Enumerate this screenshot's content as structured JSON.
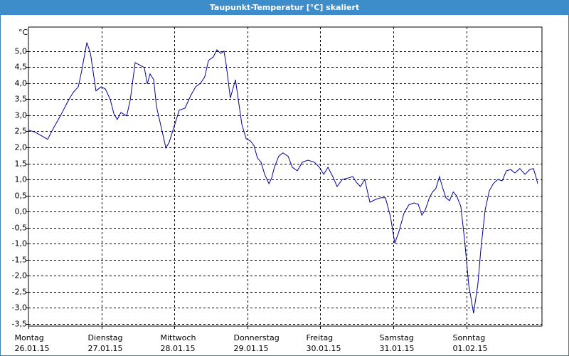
{
  "chart_data": {
    "type": "line",
    "title": "Taupunkt-Temperatur [°C] skaliert",
    "y_unit": "°C",
    "xlim": [
      0,
      168.9
    ],
    "xticks": [
      {
        "value": 0,
        "label": "Montag",
        "date": "26.01.15"
      },
      {
        "value": 24,
        "label": "Dienstag",
        "date": "27.01.15"
      },
      {
        "value": 48,
        "label": "Mittwoch",
        "date": "28.01.15"
      },
      {
        "value": 72,
        "label": "Donnerstag",
        "date": "29.01.15"
      },
      {
        "value": 96,
        "label": "Freitag",
        "date": "30.01.15"
      },
      {
        "value": 120,
        "label": "Samstag",
        "date": "31.01.15"
      },
      {
        "value": 144,
        "label": "Sonntag",
        "date": "01.02.15"
      }
    ],
    "ylim": [
      -3.57,
      5.75
    ],
    "yticks": [
      {
        "value": 5,
        "label": "5,0"
      },
      {
        "value": 4.5,
        "label": "4,5"
      },
      {
        "value": 4,
        "label": "4,0"
      },
      {
        "value": 3.5,
        "label": "3,5"
      },
      {
        "value": 3,
        "label": "3,0"
      },
      {
        "value": 2.5,
        "label": "2,5"
      },
      {
        "value": 2,
        "label": "2,0"
      },
      {
        "value": 1.5,
        "label": "1,5"
      },
      {
        "value": 1,
        "label": "1,0"
      },
      {
        "value": 0.5,
        "label": "0,5"
      },
      {
        "value": 0,
        "label": "0,0"
      },
      {
        "value": -0.5,
        "label": "-0,5"
      },
      {
        "value": -1,
        "label": "-1,0"
      },
      {
        "value": -1.5,
        "label": "-1,5"
      },
      {
        "value": -2,
        "label": "-2,0"
      },
      {
        "value": -2.5,
        "label": "-2,5"
      },
      {
        "value": -3,
        "label": "-3,0"
      },
      {
        "value": -3.5,
        "label": "-3,5"
      }
    ],
    "grid": true,
    "color": "#0000a0",
    "x": [
      0,
      2.3,
      4.7,
      6.3,
      8.2,
      10.5,
      12.9,
      14.7,
      16.4,
      17.5,
      19.2,
      20.4,
      22.2,
      23.9,
      25.3,
      26.9,
      28.1,
      29.2,
      30.4,
      32.3,
      33.5,
      35.1,
      36.7,
      38.1,
      39.1,
      40.0,
      41.2,
      42.1,
      44.0,
      45.2,
      46.3,
      47.9,
      49.6,
      51.5,
      53.3,
      55.0,
      56.6,
      58.0,
      59.2,
      60.8,
      62.0,
      63.2,
      64.3,
      65.0,
      66.4,
      68.1,
      69.0,
      70.2,
      71.6,
      73.0,
      74.2,
      75.3,
      76.5,
      77.7,
      79.1,
      80.0,
      80.9,
      82.3,
      83.7,
      85.4,
      86.8,
      88.4,
      90.1,
      91.9,
      94.0,
      95.7,
      97.1,
      98.5,
      100.1,
      101.5,
      103.2,
      105.3,
      106.7,
      107.8,
      109.2,
      110.6,
      112.3,
      114.2,
      116.0,
      117.4,
      119.1,
      120.5,
      121.9,
      123.5,
      125.1,
      126.8,
      128.2,
      129.4,
      130.5,
      131.9,
      132.9,
      134.0,
      135.2,
      136.1,
      137.3,
      138.5,
      139.7,
      140.8,
      142.2,
      143.4,
      144.8,
      146.4,
      147.8,
      148.8,
      150.2,
      151.6,
      152.9,
      154.4,
      155.8,
      157.2,
      158.6,
      160.0,
      161.6,
      163.3,
      164.9,
      166.1,
      167.0,
      167.5
    ],
    "values": [
      2.54,
      2.47,
      2.34,
      2.25,
      2.6,
      2.98,
      3.42,
      3.71,
      3.89,
      4.38,
      5.27,
      4.93,
      3.76,
      3.89,
      3.82,
      3.49,
      3.05,
      2.87,
      3.09,
      2.98,
      3.49,
      4.64,
      4.56,
      4.49,
      3.98,
      4.29,
      4.11,
      3.27,
      2.49,
      1.98,
      2.16,
      2.65,
      3.16,
      3.22,
      3.6,
      3.89,
      4.0,
      4.2,
      4.71,
      4.82,
      5.04,
      4.93,
      5.0,
      4.6,
      3.54,
      4.11,
      3.49,
      2.71,
      2.27,
      2.2,
      2.05,
      1.67,
      1.54,
      1.16,
      0.87,
      1.05,
      1.38,
      1.72,
      1.83,
      1.72,
      1.38,
      1.27,
      1.54,
      1.6,
      1.54,
      1.38,
      1.16,
      1.38,
      1.09,
      0.78,
      1.0,
      1.05,
      1.09,
      0.92,
      0.78,
      1.0,
      0.29,
      0.38,
      0.43,
      0.43,
      -0.17,
      -0.99,
      -0.61,
      -0.06,
      0.21,
      0.27,
      0.23,
      -0.11,
      0.05,
      0.43,
      0.61,
      0.72,
      1.09,
      0.78,
      0.43,
      0.34,
      0.61,
      0.49,
      0.16,
      -0.84,
      -2.28,
      -3.17,
      -2.28,
      -1.17,
      0.05,
      0.65,
      0.87,
      1.0,
      0.96,
      1.27,
      1.31,
      1.2,
      1.34,
      1.16,
      1.31,
      1.34,
      1.05,
      0.87
    ]
  }
}
